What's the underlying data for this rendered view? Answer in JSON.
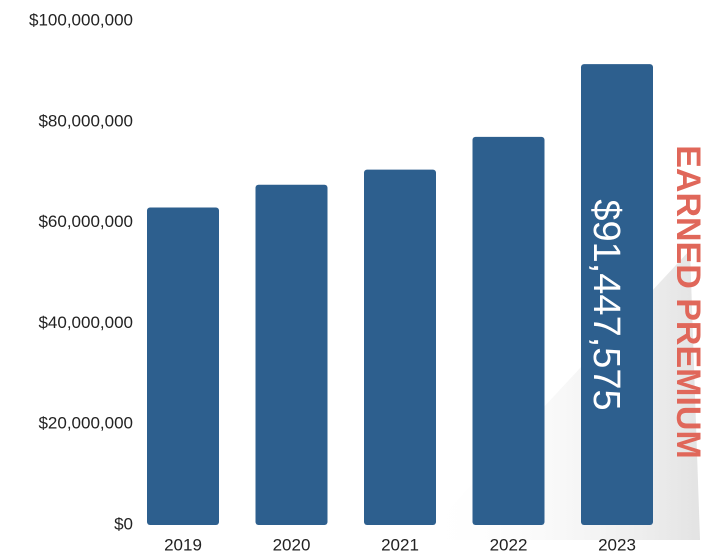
{
  "chart_data": {
    "type": "bar",
    "categories": [
      "2019",
      "2020",
      "2021",
      "2022",
      "2023"
    ],
    "values": [
      63000000,
      67500000,
      70500000,
      77000000,
      91447575
    ],
    "ylim": [
      0,
      100000000
    ],
    "yticks": [
      "$0",
      "$20,000,000",
      "$40,000,000",
      "$60,000,000",
      "$80,000,000",
      "$100,000,000"
    ],
    "bar_label": "$91,447,575",
    "side_title": "EARNED PREMIUM",
    "grid": false,
    "colors": {
      "bar": "#2d5f8e",
      "title": "#e0675a",
      "text": "#222222"
    }
  }
}
